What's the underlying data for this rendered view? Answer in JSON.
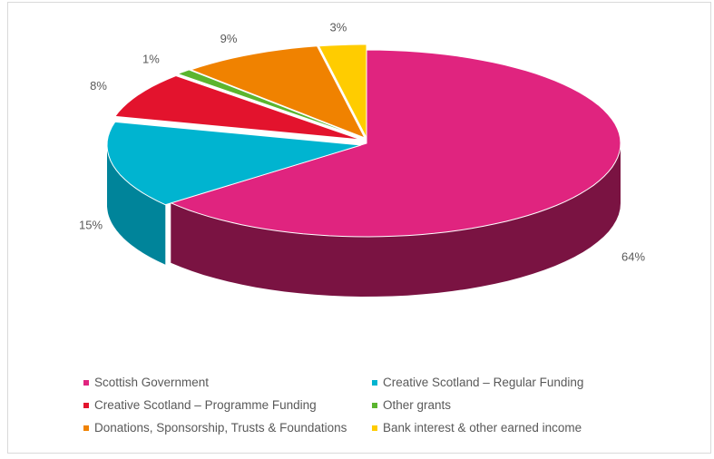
{
  "chart_data": {
    "type": "pie",
    "title": "",
    "slices": [
      {
        "label": "Scottish Government",
        "value": 64,
        "pct_label": "64%",
        "color": "#e0247f",
        "side": "#7a1342"
      },
      {
        "label": "Creative Scotland – Regular Funding",
        "value": 15,
        "pct_label": "15%",
        "color": "#00b4d0",
        "side": "#00849a"
      },
      {
        "label": "Creative Scotland – Programme Funding",
        "value": 8,
        "pct_label": "8%",
        "color": "#e3132d",
        "side": "#a00e20"
      },
      {
        "label": "Other grants",
        "value": 1,
        "pct_label": "1%",
        "color": "#5bb52f",
        "side": "#3f7e20"
      },
      {
        "label": "Donations, Sponsorship,  Trusts & Foundations",
        "value": 9,
        "pct_label": "9%",
        "color": "#f08200",
        "side": "#a85b00"
      },
      {
        "label": "Bank interest & other earned income",
        "value": 3,
        "pct_label": "3%",
        "color": "#ffcc00",
        "side": "#b38f00"
      }
    ],
    "legend_position": "bottom",
    "style": "3d-exploded-pie"
  }
}
